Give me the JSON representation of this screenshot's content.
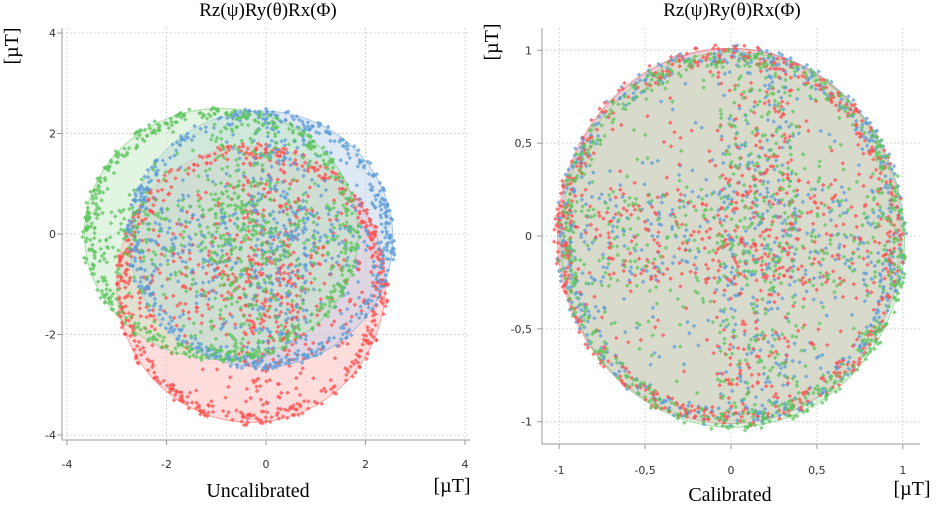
{
  "chart_data": [
    {
      "type": "scatter",
      "title": "Rz(ψ)Ry(θ)Rx(Φ)",
      "xlabel": "[µT]",
      "ylabel": "[µT]",
      "caption": "Uncalibrated",
      "xlim": [
        -4.1,
        4.1
      ],
      "ylim": [
        -4.1,
        4.1
      ],
      "xticks": [
        -4,
        -2,
        0,
        2,
        4
      ],
      "yticks": [
        -4,
        -2,
        0,
        2,
        4
      ],
      "xtick_labels": [
        "-4",
        "-2",
        "0",
        "2",
        "4"
      ],
      "ytick_labels": [
        "-4",
        "-2",
        "0",
        "2",
        "4"
      ],
      "grid": true,
      "series": [
        {
          "color": "#ff4d4d",
          "fill": "#ffb3b3",
          "ellipse": {
            "cx": -0.3,
            "cy": -1.0,
            "rx": 2.7,
            "ry": 2.75
          }
        },
        {
          "color": "#5b9bd5",
          "fill": "#b7cfe8",
          "ellipse": {
            "cx": -0.1,
            "cy": -0.1,
            "rx": 2.65,
            "ry": 2.55
          }
        },
        {
          "color": "#5cc45c",
          "fill": "#bfe6bf",
          "ellipse": {
            "cx": -0.9,
            "cy": 0.0,
            "rx": 2.75,
            "ry": 2.5
          }
        }
      ]
    },
    {
      "type": "scatter",
      "title": "Rz(ψ)Ry(θ)Rx(Φ)",
      "xlabel": "[µT]",
      "ylabel": "[µT]",
      "caption": "Calibrated",
      "xlim": [
        -1.1,
        1.1
      ],
      "ylim": [
        -1.12,
        1.12
      ],
      "xticks": [
        -1,
        -0.5,
        0,
        0.5,
        1
      ],
      "yticks": [
        -1,
        -0.5,
        0,
        0.5,
        1
      ],
      "xtick_labels": [
        "-1",
        "-0,5",
        "0",
        "0,5",
        "1"
      ],
      "ytick_labels": [
        "-1",
        "-0,5",
        "0",
        "0,5",
        "1"
      ],
      "grid": true,
      "series": [
        {
          "color": "#5b9bd5",
          "fill": "#b7cfe8",
          "ellipse": {
            "cx": 0.0,
            "cy": 0.0,
            "rx": 1.0,
            "ry": 1.01
          }
        },
        {
          "color": "#ff4d4d",
          "fill": "#ffb3b3",
          "ellipse": {
            "cx": -0.01,
            "cy": 0.0,
            "rx": 1.0,
            "ry": 1.01
          }
        },
        {
          "color": "#5cc45c",
          "fill": "#bfe6bf",
          "ellipse": {
            "cx": 0.01,
            "cy": -0.02,
            "rx": 1.0,
            "ry": 1.01
          }
        }
      ]
    }
  ]
}
